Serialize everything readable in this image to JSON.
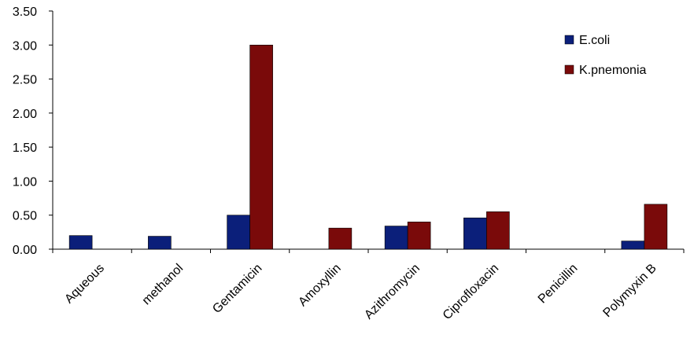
{
  "chart_data": {
    "type": "bar",
    "categories": [
      "Aqueous",
      "methanol",
      "Gentamicin",
      "Amoxyllin",
      "Azithromycin",
      "Ciprofloxacin",
      "Penicillin",
      "Polymyxin B"
    ],
    "series": [
      {
        "name": "E.coli",
        "color": "#0b1f7a",
        "values": [
          0.2,
          0.19,
          0.5,
          0.0,
          0.34,
          0.46,
          0.0,
          0.12
        ]
      },
      {
        "name": "K.pnemonia",
        "color": "#7a0a0a",
        "values": [
          0.0,
          0.0,
          3.0,
          0.31,
          0.4,
          0.55,
          0.0,
          0.66
        ]
      }
    ],
    "yticks": [
      "0.00",
      "0.50",
      "1.00",
      "1.50",
      "2.00",
      "2.50",
      "3.00",
      "3.50"
    ],
    "ylim": [
      0,
      3.5
    ],
    "title": "",
    "xlabel": "",
    "ylabel": "",
    "grid": false,
    "legend_position": "top-right"
  }
}
